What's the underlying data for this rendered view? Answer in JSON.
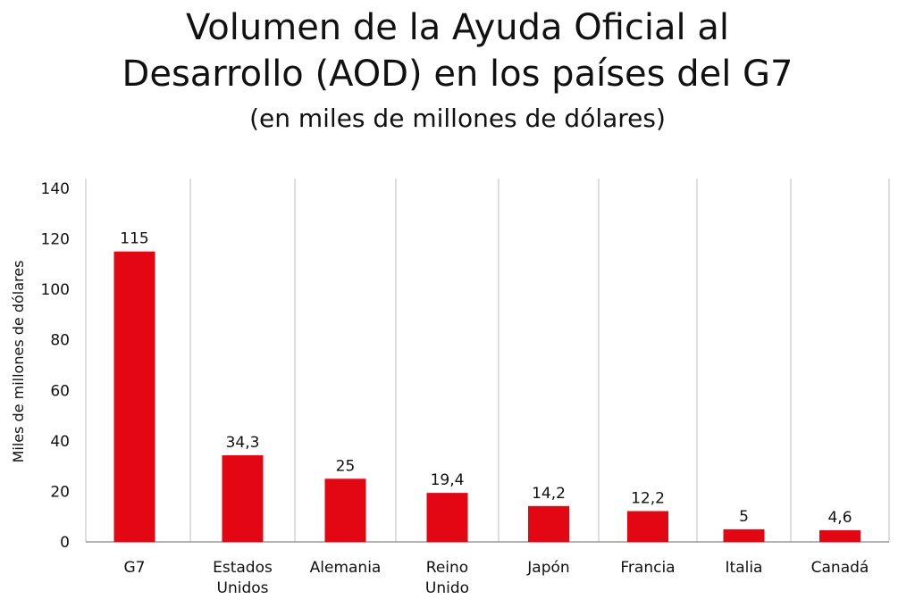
{
  "header": {
    "title_line1": "Volumen de la Ayuda Oficial al",
    "title_line2": "Desarrollo (AOD) en los países del G7",
    "subtitle": "(en miles de millones de dólares)"
  },
  "chart_data": {
    "type": "bar",
    "title": "Volumen de la Ayuda Oficial al Desarrollo (AOD) en los países del G7",
    "subtitle": "(en miles de millones de dólares)",
    "ylabel": "Miles de millones de dólares",
    "xlabel": "",
    "ylim": [
      0,
      140
    ],
    "yticks": [
      0,
      20,
      40,
      60,
      80,
      100,
      120,
      140
    ],
    "categories": [
      [
        "G7"
      ],
      [
        "Estados",
        "Unidos"
      ],
      [
        "Alemania"
      ],
      [
        "Reino",
        "Unido"
      ],
      [
        "Japón"
      ],
      [
        "Francia"
      ],
      [
        "Italia"
      ],
      [
        "Canadá"
      ]
    ],
    "values": [
      115,
      34.3,
      25,
      19.4,
      14.2,
      12.2,
      5,
      4.6
    ],
    "data_labels": [
      "115",
      "34,3",
      "25",
      "19,4",
      "14,2",
      "12,2",
      "5",
      "4,6"
    ],
    "bar_color": "#e30613",
    "grid": "vertical separators",
    "legend": "none"
  }
}
